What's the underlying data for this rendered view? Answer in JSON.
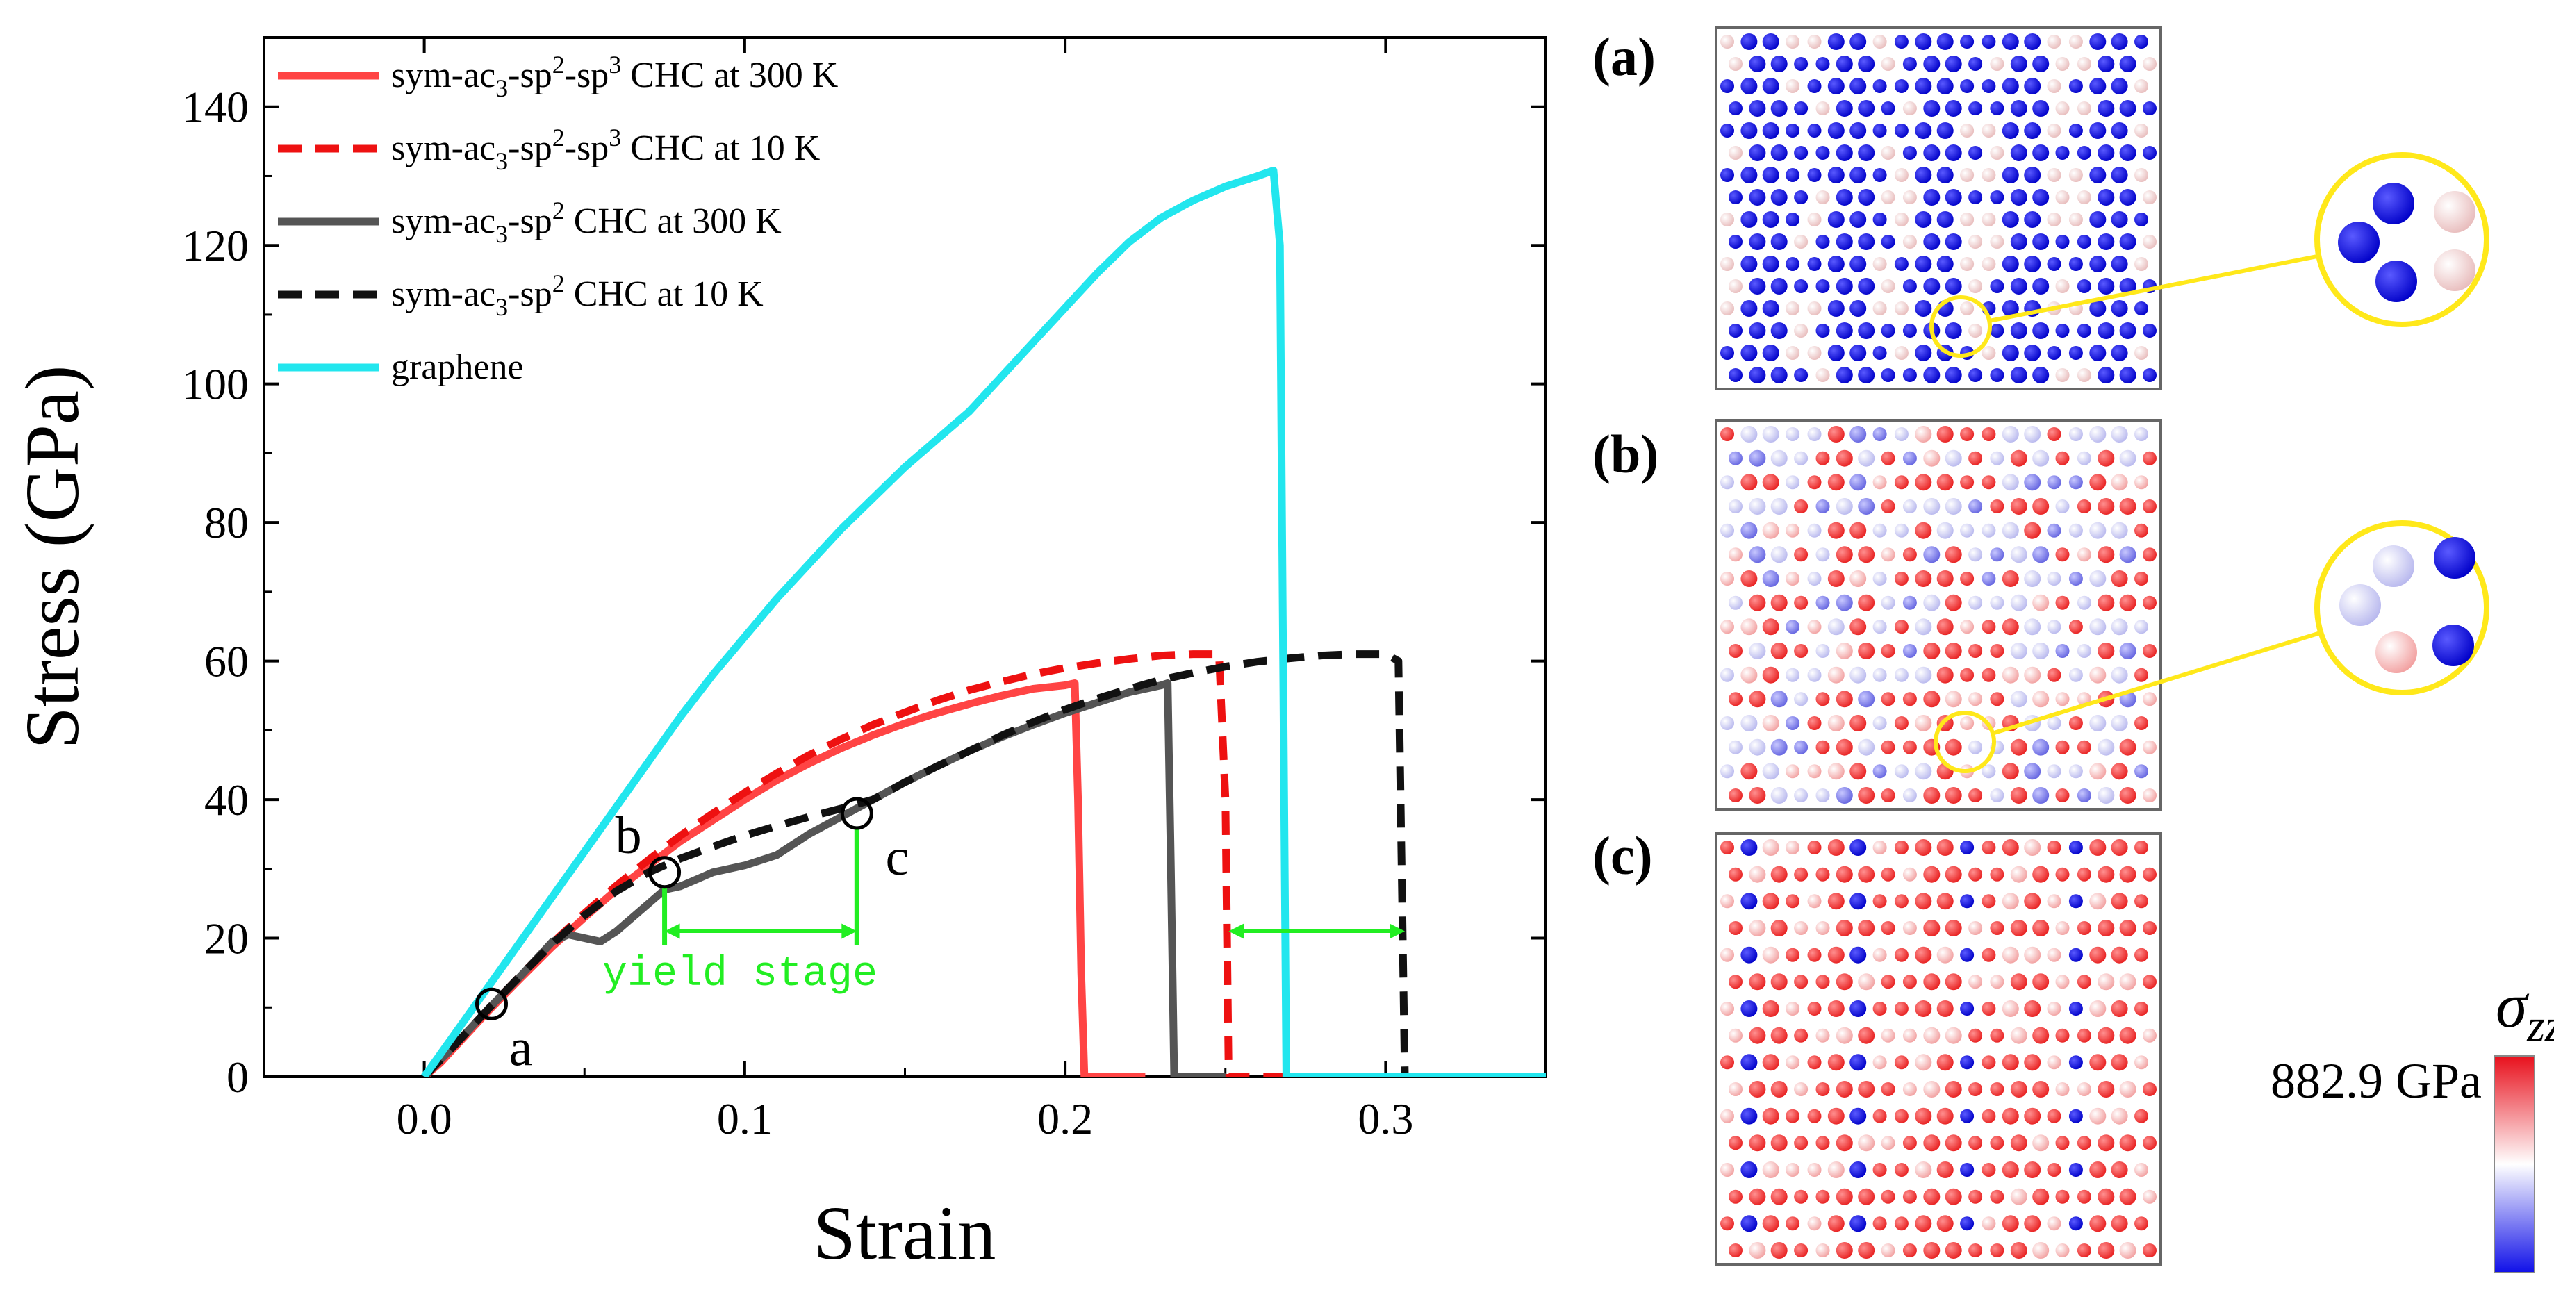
{
  "chart_data": {
    "type": "line",
    "xlabel": "Strain",
    "ylabel": "Stress (GPa)",
    "xlim": [
      -0.05,
      0.35
    ],
    "ylim": [
      0,
      150
    ],
    "xticks": [
      0.0,
      0.1,
      0.2,
      0.3
    ],
    "xtick_labels": [
      "0.0",
      "0.1",
      "0.2",
      "0.3"
    ],
    "yticks": [
      0,
      20,
      40,
      60,
      80,
      100,
      120,
      140
    ],
    "ytick_labels": [
      "0",
      "20",
      "40",
      "60",
      "80",
      "100",
      "120",
      "140"
    ],
    "grid": false,
    "legend_position": "top-left",
    "series": [
      {
        "name": "sym-ac3-sp2-sp3 CHC at 300 K",
        "legend": {
          "pre": "sym-ac",
          "sub1": "3",
          "mid1": "-sp",
          "sup1": "2",
          "mid2": "-sp",
          "sup2": "3",
          "post": " CHC at 300 K"
        },
        "color": "#ff4444",
        "style": "solid",
        "points": [
          [
            0.0,
            0
          ],
          [
            0.005,
            2
          ],
          [
            0.01,
            4.5
          ],
          [
            0.02,
            9.5
          ],
          [
            0.03,
            14.2
          ],
          [
            0.04,
            18.8
          ],
          [
            0.05,
            23
          ],
          [
            0.06,
            27
          ],
          [
            0.07,
            30.5
          ],
          [
            0.08,
            34
          ],
          [
            0.09,
            37
          ],
          [
            0.1,
            40
          ],
          [
            0.11,
            42.8
          ],
          [
            0.12,
            45.2
          ],
          [
            0.13,
            47.4
          ],
          [
            0.14,
            49.3
          ],
          [
            0.15,
            51
          ],
          [
            0.16,
            52.5
          ],
          [
            0.17,
            53.8
          ],
          [
            0.18,
            55
          ],
          [
            0.19,
            56
          ],
          [
            0.2,
            56.5
          ],
          [
            0.203,
            56.8
          ],
          [
            0.204,
            40
          ],
          [
            0.205,
            15
          ],
          [
            0.206,
            0
          ],
          [
            0.225,
            0
          ]
        ]
      },
      {
        "name": "sym-ac3-sp2-sp3 CHC at 10 K",
        "legend": {
          "pre": "sym-ac",
          "sub1": "3",
          "mid1": "-sp",
          "sup1": "2",
          "mid2": "-sp",
          "sup2": "3",
          "post": " CHC at 10 K"
        },
        "color": "#ee1111",
        "style": "dashed",
        "points": [
          [
            0.0,
            0
          ],
          [
            0.01,
            4.8
          ],
          [
            0.02,
            9.8
          ],
          [
            0.03,
            14.6
          ],
          [
            0.04,
            19.3
          ],
          [
            0.05,
            23.6
          ],
          [
            0.06,
            27.6
          ],
          [
            0.07,
            31.3
          ],
          [
            0.08,
            34.8
          ],
          [
            0.09,
            38
          ],
          [
            0.1,
            41
          ],
          [
            0.11,
            43.8
          ],
          [
            0.12,
            46.4
          ],
          [
            0.13,
            48.7
          ],
          [
            0.14,
            50.8
          ],
          [
            0.15,
            52.6
          ],
          [
            0.16,
            54.3
          ],
          [
            0.17,
            55.8
          ],
          [
            0.18,
            57
          ],
          [
            0.19,
            58.1
          ],
          [
            0.2,
            59
          ],
          [
            0.21,
            59.7
          ],
          [
            0.22,
            60.3
          ],
          [
            0.23,
            60.8
          ],
          [
            0.24,
            61
          ],
          [
            0.248,
            61
          ],
          [
            0.25,
            40
          ],
          [
            0.251,
            0
          ],
          [
            0.31,
            0
          ]
        ]
      },
      {
        "name": "sym-ac3-sp2 CHC at 300 K",
        "legend": {
          "pre": "sym-ac",
          "sub1": "3",
          "mid1": "-sp",
          "sup1": "2",
          "post": " CHC at 300 K"
        },
        "color": "#555555",
        "style": "solid",
        "points": [
          [
            0.0,
            0
          ],
          [
            0.01,
            4.8
          ],
          [
            0.02,
            9.8
          ],
          [
            0.03,
            14.5
          ],
          [
            0.04,
            19.5
          ],
          [
            0.045,
            20.5
          ],
          [
            0.05,
            20
          ],
          [
            0.055,
            19.5
          ],
          [
            0.06,
            21
          ],
          [
            0.065,
            23
          ],
          [
            0.07,
            25
          ],
          [
            0.075,
            27
          ],
          [
            0.08,
            27.5
          ],
          [
            0.085,
            28.5
          ],
          [
            0.09,
            29.5
          ],
          [
            0.1,
            30.5
          ],
          [
            0.11,
            32
          ],
          [
            0.12,
            35
          ],
          [
            0.13,
            37.5
          ],
          [
            0.14,
            40
          ],
          [
            0.15,
            42.5
          ],
          [
            0.16,
            44.8
          ],
          [
            0.17,
            47
          ],
          [
            0.18,
            49
          ],
          [
            0.19,
            50.8
          ],
          [
            0.2,
            52.5
          ],
          [
            0.21,
            54
          ],
          [
            0.22,
            55.5
          ],
          [
            0.23,
            56.5
          ],
          [
            0.232,
            56.8
          ],
          [
            0.233,
            30
          ],
          [
            0.234,
            0
          ],
          [
            0.25,
            0
          ]
        ]
      },
      {
        "name": "sym-ac3-sp2 CHC at 10 K",
        "legend": {
          "pre": "sym-ac",
          "sub1": "3",
          "mid1": "-sp",
          "sup1": "2",
          "post": " CHC at 10 K"
        },
        "color": "#111111",
        "style": "dashed",
        "points": [
          [
            0.0,
            0
          ],
          [
            0.01,
            4.8
          ],
          [
            0.02,
            9.8
          ],
          [
            0.03,
            14.6
          ],
          [
            0.04,
            19.2
          ],
          [
            0.05,
            23.3
          ],
          [
            0.06,
            26.8
          ],
          [
            0.07,
            29.5
          ],
          [
            0.08,
            31.5
          ],
          [
            0.09,
            33.2
          ],
          [
            0.1,
            34.8
          ],
          [
            0.11,
            36.2
          ],
          [
            0.12,
            37.5
          ],
          [
            0.13,
            38.7
          ],
          [
            0.14,
            40
          ],
          [
            0.15,
            42.5
          ],
          [
            0.16,
            44.8
          ],
          [
            0.17,
            47
          ],
          [
            0.18,
            49.2
          ],
          [
            0.19,
            51.2
          ],
          [
            0.2,
            53
          ],
          [
            0.21,
            54.6
          ],
          [
            0.22,
            56
          ],
          [
            0.23,
            57.3
          ],
          [
            0.24,
            58.3
          ],
          [
            0.25,
            59.2
          ],
          [
            0.26,
            59.9
          ],
          [
            0.27,
            60.4
          ],
          [
            0.28,
            60.8
          ],
          [
            0.29,
            61
          ],
          [
            0.3,
            61
          ],
          [
            0.304,
            60
          ],
          [
            0.305,
            30
          ],
          [
            0.306,
            0
          ],
          [
            0.35,
            0
          ]
        ]
      },
      {
        "name": "graphene",
        "legend": {
          "pre": "graphene"
        },
        "color": "#22e6ee",
        "style": "solid",
        "points": [
          [
            0.0,
            0
          ],
          [
            0.01,
            6.5
          ],
          [
            0.02,
            13
          ],
          [
            0.03,
            19.5
          ],
          [
            0.04,
            26
          ],
          [
            0.05,
            32.5
          ],
          [
            0.06,
            39
          ],
          [
            0.07,
            45.5
          ],
          [
            0.08,
            52
          ],
          [
            0.09,
            58
          ],
          [
            0.1,
            63.5
          ],
          [
            0.11,
            69
          ],
          [
            0.12,
            74
          ],
          [
            0.13,
            79
          ],
          [
            0.14,
            83.5
          ],
          [
            0.15,
            88
          ],
          [
            0.16,
            92
          ],
          [
            0.17,
            96
          ],
          [
            0.18,
            101
          ],
          [
            0.19,
            106
          ],
          [
            0.2,
            111
          ],
          [
            0.21,
            116
          ],
          [
            0.22,
            120.5
          ],
          [
            0.23,
            124
          ],
          [
            0.24,
            126.5
          ],
          [
            0.25,
            128.5
          ],
          [
            0.26,
            130
          ],
          [
            0.265,
            130.8
          ],
          [
            0.267,
            120
          ],
          [
            0.268,
            60
          ],
          [
            0.269,
            0
          ],
          [
            0.35,
            0
          ]
        ]
      }
    ],
    "markers": [
      {
        "label": "a",
        "x": 0.021,
        "y": 10.5
      },
      {
        "label": "b",
        "x": 0.075,
        "y": 29.5
      },
      {
        "label": "c",
        "x": 0.135,
        "y": 38
      }
    ],
    "annotations": [
      {
        "text": "yield stage",
        "color": "#22ee22",
        "x_from": 0.075,
        "x_to": 0.135,
        "y_arrow": 21,
        "y_top_left": 29.5,
        "y_top_right": 38
      },
      {
        "text": "",
        "color": "#22ee22",
        "x_from": 0.251,
        "x_to": 0.306,
        "y_arrow": 21
      }
    ]
  },
  "panels": [
    {
      "label": "(a)",
      "color_mode": "blue"
    },
    {
      "label": "(b)",
      "color_mode": "mixed"
    },
    {
      "label": "(c)",
      "color_mode": "red"
    }
  ],
  "colorbar": {
    "title_symbol": "σ",
    "title_subscript": "zz",
    "max_label": "882.9 GPa",
    "colors": [
      "#e8101c",
      "#ffffff",
      "#1010e8"
    ]
  }
}
